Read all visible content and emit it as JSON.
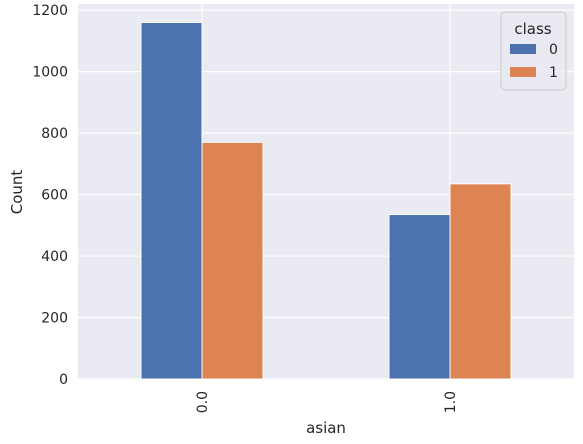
{
  "chart_data": {
    "type": "bar",
    "xlabel": "asian",
    "ylabel": "Count",
    "categories": [
      "0.0",
      "1.0"
    ],
    "series": [
      {
        "name": "0",
        "values": [
          1160,
          535
        ],
        "color": "#4c72b0"
      },
      {
        "name": "1",
        "values": [
          770,
          635
        ],
        "color": "#dd8452"
      }
    ],
    "ylim": [
      0,
      1220
    ],
    "yticks": [
      0,
      200,
      400,
      600,
      800,
      1000,
      1200
    ],
    "grid": true,
    "legend": {
      "title": "class",
      "position": "top-right"
    },
    "background_color": "#eaeaf2",
    "grid_color": "#ffffff",
    "x_tick_rotation": 90
  }
}
